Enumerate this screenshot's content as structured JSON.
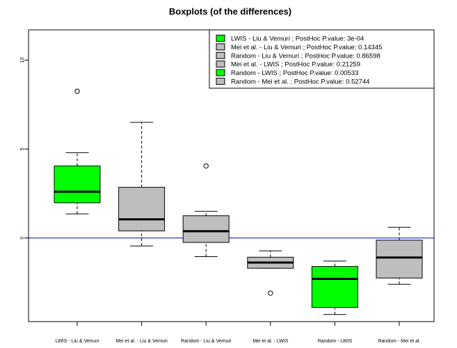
{
  "chart_data": {
    "type": "boxplot",
    "title": "Boxplots (of the differences)",
    "xlabel": "",
    "ylabel": "",
    "ylim": [
      -4.7,
      11.7
    ],
    "yticks": [
      0,
      5,
      10
    ],
    "ytick_labels": [
      "0",
      "5",
      "10"
    ],
    "reference_line": {
      "y": 0,
      "color": "#0000cc"
    },
    "categories": [
      "LWIS - Liu & Vemuri",
      "Mei et al. - Liu & Vemuri",
      "Random - Liu & Vemuri",
      "Mei et al. - LWIS",
      "Random - LWIS",
      "Random - Mei et al."
    ],
    "boxes": [
      {
        "whisker_low": 1.35,
        "q1": 1.98,
        "median": 2.6,
        "q3": 4.05,
        "whisker_high": 4.8,
        "outliers": [
          8.25
        ],
        "color": "#00ff00"
      },
      {
        "whisker_low": -0.45,
        "q1": 0.4,
        "median": 1.05,
        "q3": 2.85,
        "whisker_high": 6.5,
        "outliers": [],
        "color": "#bebebe"
      },
      {
        "whisker_low": -1.05,
        "q1": -0.25,
        "median": 0.38,
        "q3": 1.25,
        "whisker_high": 1.5,
        "outliers": [
          4.05
        ],
        "color": "#bebebe"
      },
      {
        "whisker_low": -1.7,
        "q1": -1.7,
        "median": -1.38,
        "q3": -1.08,
        "whisker_high": -0.72,
        "outliers": [
          -3.1
        ],
        "color": "#bebebe"
      },
      {
        "whisker_low": -4.3,
        "q1": -3.9,
        "median": -2.3,
        "q3": -1.6,
        "whisker_high": -1.3,
        "outliers": [],
        "color": "#00ff00"
      },
      {
        "whisker_low": -2.6,
        "q1": -2.25,
        "median": -1.1,
        "q3": -0.12,
        "whisker_high": 0.6,
        "outliers": [],
        "color": "#bebebe"
      }
    ],
    "legend": {
      "placement": "top-right",
      "entries": [
        {
          "label": "LWIS - Liu & Vemuri  ; PostHoc P.value: 3e-04",
          "color": "#00ff00"
        },
        {
          "label": "Mei et al. - Liu & Vemuri  ; PostHoc P.value: 0.14345",
          "color": "#bebebe"
        },
        {
          "label": "Random - Liu & Vemuri  ; PostHoc P.value: 0.86598",
          "color": "#bebebe"
        },
        {
          "label": "Mei et al. - LWIS  ; PostHoc P.value: 0.21259",
          "color": "#bebebe"
        },
        {
          "label": "Random - LWIS  ; PostHoc P.value: 0.00533",
          "color": "#00ff00"
        },
        {
          "label": "Random - Mei et al.  ; PostHoc P.value: 0.52744",
          "color": "#bebebe"
        }
      ]
    }
  }
}
